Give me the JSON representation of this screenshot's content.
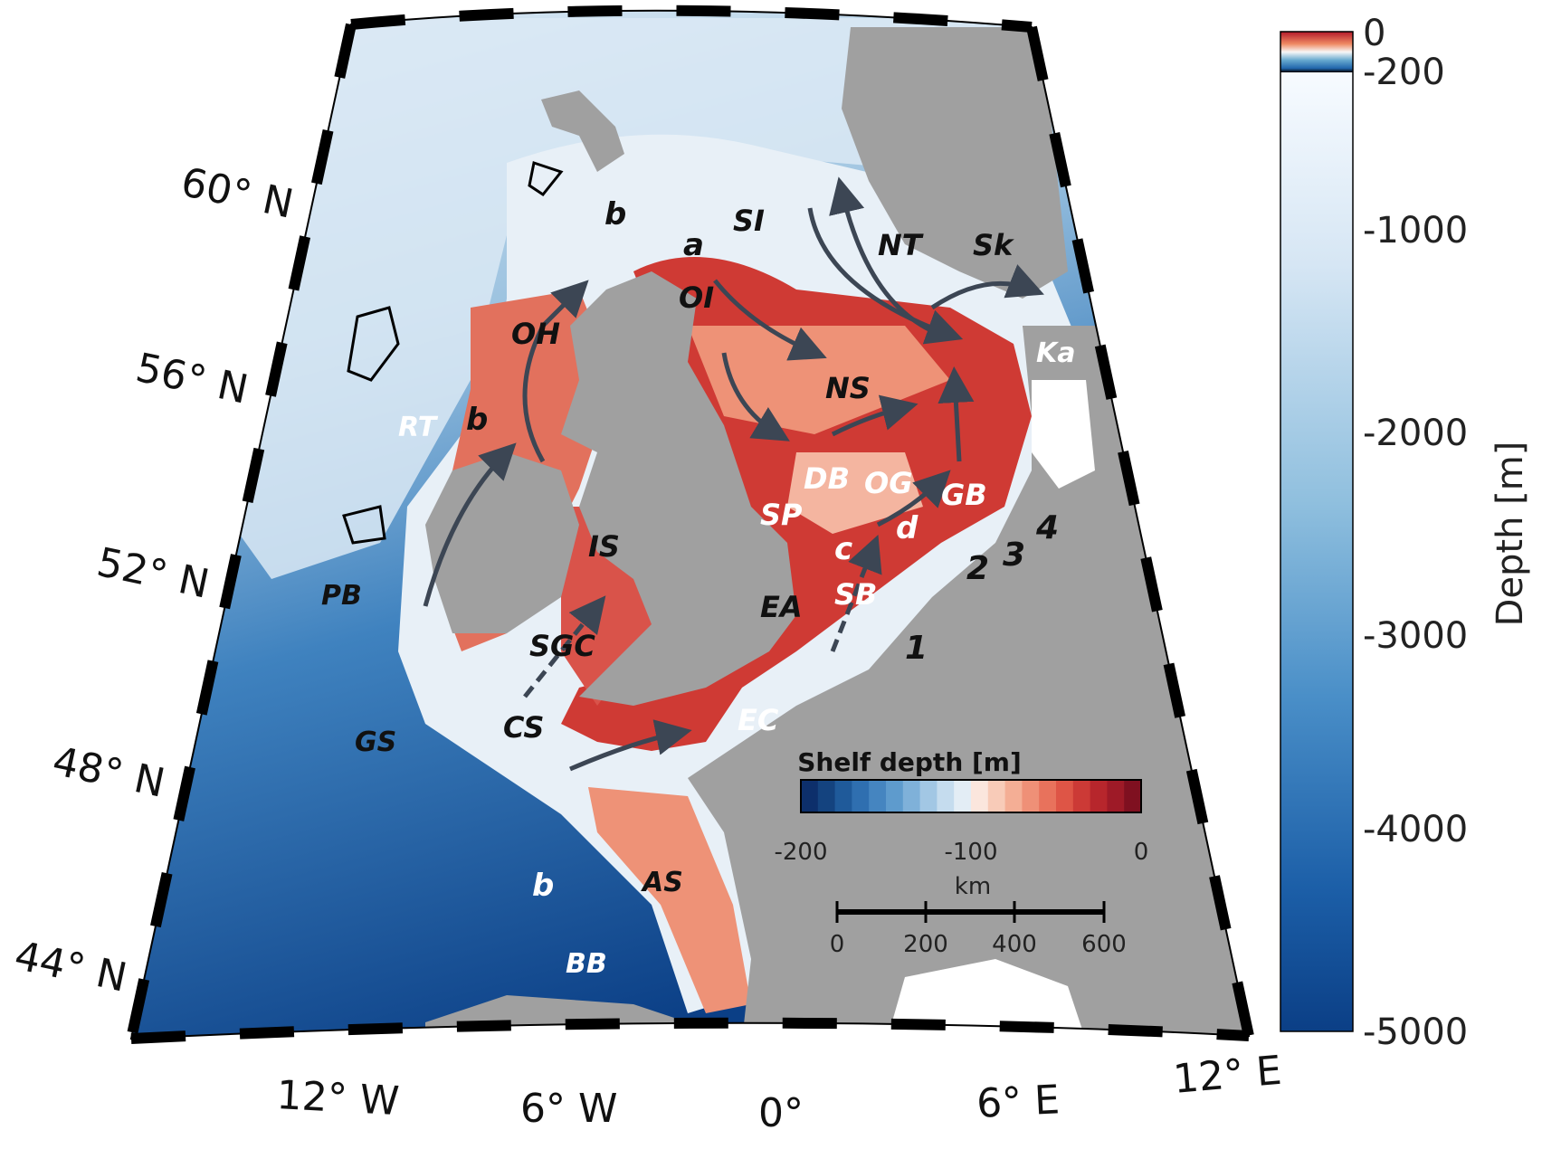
{
  "lat_labels": [
    "60° N",
    "56° N",
    "52° N",
    "48° N",
    "44° N"
  ],
  "lon_labels": [
    "12° W",
    "6° W",
    "0°",
    "6° E",
    "12° E"
  ],
  "labels_dark": [
    "b",
    "SI",
    "a",
    "NT",
    "Sk",
    "OI",
    "OH",
    "NS",
    "b",
    "IS",
    "PB",
    "EA",
    "SGC",
    "CS",
    "GS",
    "AS",
    "1",
    "2",
    "3",
    "4"
  ],
  "labels_light": [
    "Ka",
    "RT",
    "DB",
    "OG",
    "GB",
    "SP",
    "c",
    "d",
    "SB",
    "EC",
    "b",
    "BB"
  ],
  "depth_colorbar": {
    "title": "Depth [m]",
    "ticks": [
      "0",
      "-200",
      "-1000",
      "-2000",
      "-3000",
      "-4000",
      "-5000"
    ]
  },
  "shelf_colorbar": {
    "title": "Shelf depth [m]",
    "ticks": [
      "-200",
      "-100",
      "0"
    ]
  },
  "scale_bar": {
    "unit": "km",
    "ticks": [
      "0",
      "200",
      "400",
      "600"
    ]
  },
  "colors": {
    "land": "#a0a0a0",
    "deep": "#0b3f86",
    "mid": "#4a8fc8",
    "shallow_blue": "#d8e8f3",
    "shelf": "#c62a2a",
    "shelf_light": "#ef8a72",
    "arrow": "#3c4654"
  }
}
